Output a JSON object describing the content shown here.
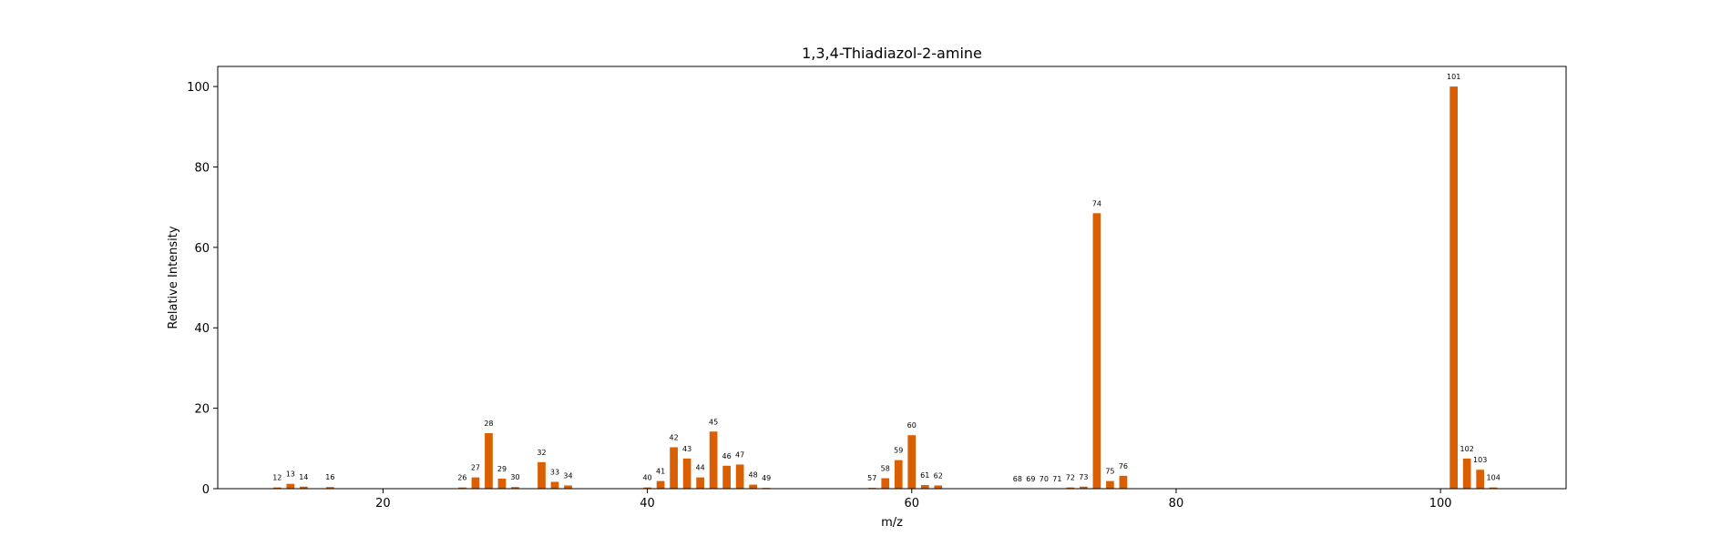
{
  "chart_data": {
    "type": "bar",
    "title": "1,3,4-Thiadiazol-2-amine",
    "xlabel": "m/z",
    "ylabel": "Relative Intensity",
    "xlim": [
      7.5,
      109.5
    ],
    "ylim": [
      0,
      105
    ],
    "xticks": [
      20,
      40,
      60,
      80,
      100
    ],
    "yticks": [
      0,
      20,
      40,
      60,
      80,
      100
    ],
    "grid": false,
    "bar_color": "#d95f02",
    "x": [
      12,
      13,
      14,
      16,
      26,
      27,
      28,
      29,
      30,
      32,
      33,
      34,
      40,
      41,
      42,
      43,
      44,
      45,
      46,
      47,
      48,
      49,
      57,
      58,
      59,
      60,
      61,
      62,
      68,
      69,
      70,
      71,
      72,
      73,
      74,
      75,
      76,
      101,
      102,
      103,
      104
    ],
    "values": [
      0.3,
      1.2,
      0.5,
      0.4,
      0.3,
      2.8,
      13.8,
      2.5,
      0.4,
      6.6,
      1.7,
      0.8,
      0.3,
      1.9,
      10.3,
      7.5,
      2.8,
      14.2,
      5.7,
      6.0,
      1.0,
      0.2,
      0.2,
      2.6,
      7.1,
      13.3,
      0.9,
      0.8,
      0.05,
      0.05,
      0.05,
      0.05,
      0.3,
      0.5,
      68.5,
      1.9,
      3.2,
      100,
      7.5,
      4.7,
      0.3
    ]
  }
}
